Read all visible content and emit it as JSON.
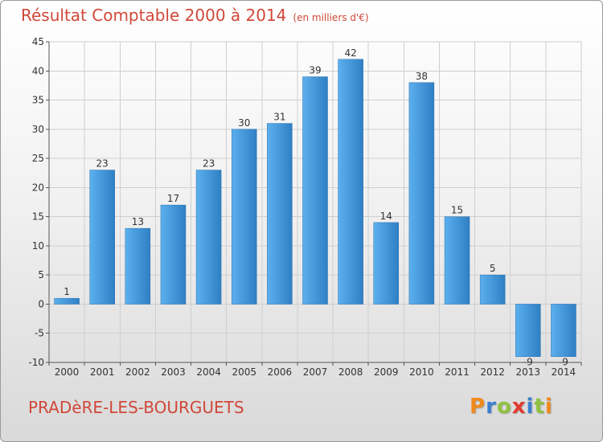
{
  "header": {
    "title": "Résultat Comptable 2000 à 2014",
    "unit": "(en milliers d'€)"
  },
  "footer": {
    "location": "PRADèRE-LES-BOURGUETS",
    "logo_letters": [
      "P",
      "r",
      "o",
      "x",
      "i",
      "t",
      "i"
    ],
    "logo_colors": [
      "#f08a1c",
      "#3b7fd0",
      "#8fc23f",
      "#e23a2e",
      "#3b7fd0",
      "#8fc23f",
      "#f08a1c"
    ]
  },
  "chart_data": {
    "type": "bar",
    "title": "Résultat Comptable 2000 à 2014",
    "subtitle": "(en milliers d'€)",
    "xlabel": "",
    "ylabel": "",
    "categories": [
      "2000",
      "2001",
      "2002",
      "2003",
      "2004",
      "2005",
      "2006",
      "2007",
      "2008",
      "2009",
      "2010",
      "2011",
      "2012",
      "2013",
      "2014"
    ],
    "values": [
      1,
      23,
      13,
      17,
      23,
      30,
      31,
      39,
      42,
      14,
      38,
      15,
      5,
      -9,
      -9
    ],
    "ylim": [
      -10,
      45
    ],
    "yticks": [
      -10,
      -5,
      0,
      5,
      10,
      15,
      20,
      25,
      30,
      35,
      40,
      45
    ],
    "grid": true,
    "colors": {
      "bar_light": "#5cb0ee",
      "bar_dark": "#2f7fc4",
      "grid": "#cfcfcf"
    }
  }
}
